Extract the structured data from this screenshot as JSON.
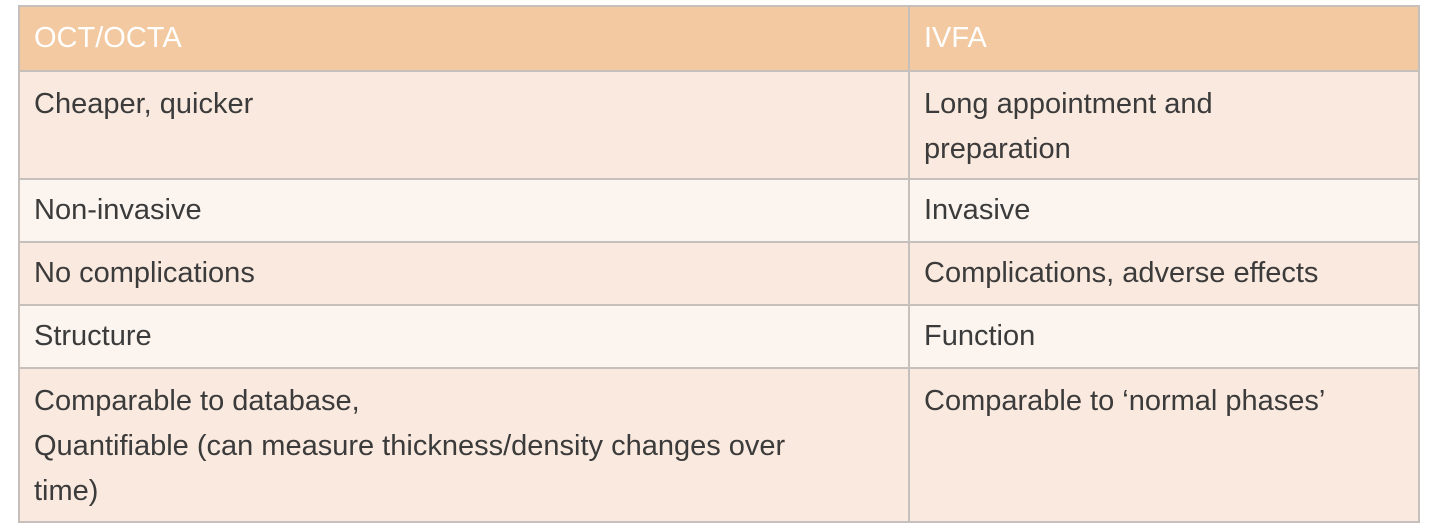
{
  "table": {
    "headers": [
      "OCT/OCTA",
      "IVFA"
    ],
    "rows": [
      {
        "left": [
          "Cheaper, quicker"
        ],
        "right": [
          "Long appointment and",
          "preparation"
        ]
      },
      {
        "left": [
          "Non-invasive"
        ],
        "right": [
          "Invasive"
        ]
      },
      {
        "left": [
          "No complications"
        ],
        "right": [
          "Complications, adverse effects"
        ]
      },
      {
        "left": [
          "Structure"
        ],
        "right": [
          "Function"
        ]
      },
      {
        "left": [
          "Comparable to database,",
          "Quantifiable (can measure thickness/density changes over",
          "time)"
        ],
        "right": [
          "Comparable to ‘normal phases’"
        ]
      }
    ]
  },
  "colors": {
    "header_bg": "#f2c9a0",
    "header_text": "#ffffff",
    "row_even_bg": "#fae9de",
    "row_odd_bg": "#fcf5ef",
    "border": "#c6c0bc",
    "text": "#3b3b3b"
  }
}
